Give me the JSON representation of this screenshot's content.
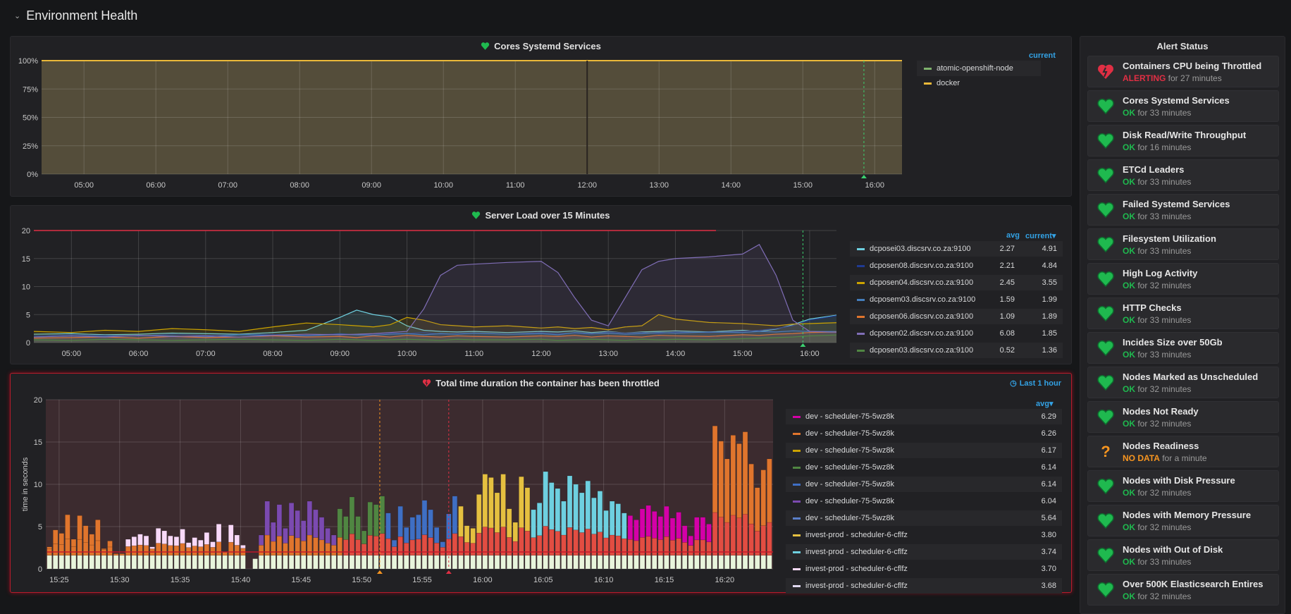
{
  "row": {
    "title": "Environment Health"
  },
  "panels": {
    "cores": {
      "title": "Cores Systemd Services",
      "legend_header": "current",
      "legend": [
        {
          "name": "atomic-openshift-node",
          "color": "#7eb26d"
        },
        {
          "name": "docker",
          "color": "#eab839"
        }
      ]
    },
    "load": {
      "title": "Server Load over 15 Minutes",
      "col_avg": "avg",
      "col_current": "current▾",
      "legend": [
        {
          "name": "dcposei03.discsrv.co.za:9100",
          "color": "#6ed0e0",
          "avg": "2.27",
          "current": "4.91"
        },
        {
          "name": "dcposen08.discsrv.co.za:9100",
          "color": "#1f3a93",
          "avg": "2.21",
          "current": "4.84"
        },
        {
          "name": "dcposen04.discsrv.co.za:9100",
          "color": "#cca300",
          "avg": "2.45",
          "current": "3.55"
        },
        {
          "name": "dcposem03.discsrv.co.za:9100",
          "color": "#447ebc",
          "avg": "1.59",
          "current": "1.99"
        },
        {
          "name": "dcposen06.discsrv.co.za:9100",
          "color": "#e0752d",
          "avg": "1.09",
          "current": "1.89"
        },
        {
          "name": "dcposen02.discsrv.co.za:9100",
          "color": "#806eb7",
          "avg": "6.08",
          "current": "1.85"
        },
        {
          "name": "dcposen03.discsrv.co.za:9100",
          "color": "#508642",
          "avg": "0.52",
          "current": "1.36"
        }
      ]
    },
    "throttle": {
      "title": "Total time duration the container has been throttled",
      "time_range": "Last 1 hour",
      "col_avg": "avg▾",
      "legend": [
        {
          "name": "dev - scheduler-75-5wz8k",
          "color": "#d400a8",
          "avg": "6.29"
        },
        {
          "name": "dev - scheduler-75-5wz8k",
          "color": "#e0752d",
          "avg": "6.26"
        },
        {
          "name": "dev - scheduler-75-5wz8k",
          "color": "#cca300",
          "avg": "6.17"
        },
        {
          "name": "dev - scheduler-75-5wz8k",
          "color": "#508642",
          "avg": "6.14"
        },
        {
          "name": "dev - scheduler-75-5wz8k",
          "color": "#3f6fc4",
          "avg": "6.14"
        },
        {
          "name": "dev - scheduler-75-5wz8k",
          "color": "#7b4ab0",
          "avg": "6.04"
        },
        {
          "name": "dev - scheduler-75-5wz8k",
          "color": "#5b7fc9",
          "avg": "5.64"
        },
        {
          "name": "invest-prod - scheduler-6-cflfz",
          "color": "#e5c040",
          "avg": "3.80"
        },
        {
          "name": "invest-prod - scheduler-6-cflfz",
          "color": "#6ed0e0",
          "avg": "3.74"
        },
        {
          "name": "invest-prod - scheduler-6-cflfz",
          "color": "#f9d9f9",
          "avg": "3.70"
        },
        {
          "name": "invest-prod - scheduler-6-cflfz",
          "color": "#e0d8f0",
          "avg": "3.68"
        }
      ]
    }
  },
  "alerts": {
    "title": "Alert Status",
    "items": [
      {
        "name": "Containers CPU being Throttled",
        "state": "ALERTING",
        "duration": "for 27 minutes"
      },
      {
        "name": "Cores Systemd Services",
        "state": "OK",
        "duration": "for 33 minutes"
      },
      {
        "name": "Disk Read/Write Throughput",
        "state": "OK",
        "duration": "for 16 minutes"
      },
      {
        "name": "ETCd Leaders",
        "state": "OK",
        "duration": "for 33 minutes"
      },
      {
        "name": "Failed Systemd Services",
        "state": "OK",
        "duration": "for 33 minutes"
      },
      {
        "name": "Filesystem Utilization",
        "state": "OK",
        "duration": "for 33 minutes"
      },
      {
        "name": "High Log Activity",
        "state": "OK",
        "duration": "for 32 minutes"
      },
      {
        "name": "HTTP Checks",
        "state": "OK",
        "duration": "for 33 minutes"
      },
      {
        "name": "Incides Size over 50Gb",
        "state": "OK",
        "duration": "for 33 minutes"
      },
      {
        "name": "Nodes Marked as Unscheduled",
        "state": "OK",
        "duration": "for 32 minutes"
      },
      {
        "name": "Nodes Not Ready",
        "state": "OK",
        "duration": "for 32 minutes"
      },
      {
        "name": "Nodes Readiness",
        "state": "NO DATA",
        "duration": "for a minute"
      },
      {
        "name": "Nodes with Disk Pressure",
        "state": "OK",
        "duration": "for 32 minutes"
      },
      {
        "name": "Nodes with Memory Pressure",
        "state": "OK",
        "duration": "for 32 minutes"
      },
      {
        "name": "Nodes with Out of Disk",
        "state": "OK",
        "duration": "for 33 minutes"
      },
      {
        "name": "Over 500K Elasticsearch Entires",
        "state": "OK",
        "duration": "for 32 minutes"
      }
    ]
  },
  "colors": {
    "ok": "#1fb94f",
    "alerting": "#e02f44",
    "nodata": "#f79520",
    "accent": "#33a2e5"
  },
  "chart_data": [
    {
      "type": "area",
      "title": "Cores Systemd Services",
      "x_unit": "hours",
      "xlim": [
        4.41,
        16.38
      ],
      "ylim": [
        0,
        100
      ],
      "y_ticks": [
        "0%",
        "25%",
        "50%",
        "75%",
        "100%"
      ],
      "x_ticks": [
        "05:00",
        "06:00",
        "07:00",
        "08:00",
        "09:00",
        "10:00",
        "11:00",
        "12:00",
        "13:00",
        "14:00",
        "15:00",
        "16:00"
      ],
      "series": [
        {
          "name": "atomic-openshift-node",
          "x": [
            4.41,
            16.38
          ],
          "y": [
            100,
            100
          ]
        },
        {
          "name": "docker",
          "x": [
            4.41,
            16.38
          ],
          "y": [
            100,
            100
          ]
        }
      ],
      "annotation_x": 15.85
    },
    {
      "type": "line",
      "title": "Server Load over 15 Minutes",
      "x_unit": "hours",
      "xlim": [
        4.44,
        16.4
      ],
      "ylim": [
        0,
        20
      ],
      "threshold": 20,
      "y_ticks": [
        "0",
        "5",
        "10",
        "15",
        "20"
      ],
      "x_ticks": [
        "05:00",
        "06:00",
        "07:00",
        "08:00",
        "09:00",
        "10:00",
        "11:00",
        "12:00",
        "13:00",
        "14:00",
        "15:00",
        "16:00"
      ],
      "x": [
        4.44,
        5,
        5.5,
        6,
        6.5,
        7,
        7.5,
        8,
        8.5,
        9,
        9.25,
        9.5,
        9.75,
        10,
        10.25,
        10.5,
        10.75,
        11,
        11.5,
        12,
        12.25,
        12.5,
        12.75,
        13,
        13.25,
        13.5,
        13.75,
        14,
        14.5,
        15,
        15.25,
        15.5,
        15.75,
        16,
        16.4
      ],
      "series": [
        {
          "name": "dcposei03.discsrv.co.za:9100",
          "y": [
            1.5,
            1.6,
            1.4,
            1.5,
            1.7,
            1.6,
            1.5,
            1.8,
            2.2,
            4.5,
            5.8,
            5.0,
            4.6,
            3.0,
            2.2,
            2.0,
            1.9,
            2.0,
            1.8,
            2.0,
            1.9,
            2.1,
            1.8,
            2.0,
            1.7,
            1.9,
            2.0,
            2.1,
            1.9,
            2.2,
            2.0,
            2.4,
            3.2,
            4.2,
            4.9
          ]
        },
        {
          "name": "dcposen08.discsrv.co.za:9100",
          "y": [
            1.2,
            1.4,
            1.3,
            1.2,
            1.5,
            1.3,
            1.4,
            1.5,
            1.3,
            1.6,
            1.4,
            1.5,
            1.7,
            1.6,
            1.8,
            1.5,
            1.6,
            1.7,
            1.5,
            1.8,
            1.6,
            1.7,
            1.5,
            1.9,
            1.7,
            1.8,
            1.6,
            1.9,
            1.8,
            2.0,
            2.2,
            2.5,
            3.0,
            4.0,
            4.8
          ]
        },
        {
          "name": "dcposen04.discsrv.co.za:9100",
          "y": [
            2.0,
            1.8,
            2.2,
            2.0,
            2.5,
            2.3,
            2.0,
            2.8,
            3.5,
            3.2,
            3.0,
            2.8,
            3.2,
            4.5,
            4.0,
            3.2,
            3.0,
            2.8,
            3.0,
            2.6,
            2.8,
            2.5,
            2.7,
            2.3,
            2.8,
            3.0,
            5.0,
            4.2,
            3.6,
            3.4,
            3.2,
            3.0,
            3.3,
            3.4,
            3.55
          ]
        },
        {
          "name": "dcposem03.discsrv.co.za:9100",
          "y": [
            1.0,
            1.2,
            1.1,
            1.3,
            1.2,
            1.0,
            1.4,
            1.3,
            1.2,
            1.5,
            1.4,
            1.3,
            1.5,
            1.6,
            1.4,
            1.6,
            1.5,
            1.7,
            1.5,
            1.6,
            1.4,
            1.8,
            1.6,
            1.7,
            1.5,
            1.6,
            1.8,
            1.7,
            1.9,
            1.8,
            2.0,
            1.9,
            2.1,
            2.0,
            1.99
          ]
        },
        {
          "name": "dcposen06.discsrv.co.za:9100",
          "y": [
            0.8,
            0.9,
            1.0,
            0.8,
            1.1,
            0.9,
            1.0,
            1.2,
            1.0,
            1.1,
            0.9,
            1.2,
            1.0,
            1.3,
            1.1,
            1.0,
            1.2,
            1.1,
            1.0,
            1.2,
            1.1,
            1.3,
            1.0,
            1.2,
            1.1,
            1.0,
            1.3,
            1.2,
            1.1,
            1.4,
            1.3,
            1.5,
            1.6,
            1.8,
            1.89
          ]
        },
        {
          "name": "dcposen02.discsrv.co.za:9100",
          "y": [
            1.0,
            1.2,
            1.0,
            1.3,
            1.1,
            1.2,
            1.0,
            1.3,
            1.5,
            1.4,
            1.5,
            1.6,
            1.8,
            2.0,
            6.0,
            12.0,
            13.8,
            14.0,
            14.3,
            14.5,
            12.5,
            8.0,
            4.0,
            3.0,
            8.0,
            13.0,
            14.5,
            15.0,
            15.3,
            15.8,
            17.5,
            12.0,
            4.0,
            2.0,
            1.85
          ]
        },
        {
          "name": "dcposen03.discsrv.co.za:9100",
          "y": [
            0.5,
            0.4,
            0.6,
            0.5,
            0.4,
            0.5,
            0.6,
            0.5,
            0.4,
            0.6,
            0.5,
            0.4,
            0.5,
            0.6,
            0.5,
            0.4,
            0.6,
            0.5,
            0.5,
            0.6,
            0.4,
            0.5,
            0.6,
            0.5,
            0.4,
            0.6,
            0.5,
            0.6,
            0.5,
            0.7,
            0.8,
            0.9,
            1.0,
            1.2,
            1.36
          ]
        }
      ],
      "annotation_x": 15.9
    },
    {
      "type": "bar",
      "stacked": true,
      "title": "Total time duration the container has been throttled",
      "ylabel": "time in seconds",
      "x_unit": "minutes after 15:00",
      "xlim": [
        23.9,
        84
      ],
      "ylim": [
        0,
        20
      ],
      "threshold": 2,
      "y_ticks": [
        "0",
        "5",
        "10",
        "15",
        "20"
      ],
      "x_ticks": [
        "15:25",
        "15:30",
        "15:35",
        "15:40",
        "15:45",
        "15:50",
        "15:55",
        "16:00",
        "16:05",
        "16:10",
        "16:15",
        "16:20"
      ],
      "bar_start": 24,
      "bar_step": 0.5,
      "totals": [
        2.6,
        4.6,
        4.2,
        6.4,
        3.5,
        6.3,
        5.1,
        4.1,
        5.8,
        2.4,
        3.3,
        1.8,
        1.8,
        3.5,
        3.8,
        4.1,
        3.9,
        2.6,
        4.8,
        4.5,
        3.9,
        3.8,
        4.7,
        3.1,
        3.7,
        3.4,
        4.3,
        3.2,
        5.3,
        2.0,
        5.2,
        4.0,
        2.8,
        0,
        1.2,
        4.0,
        8.0,
        5.5,
        7.6,
        4.8,
        7.8,
        6.9,
        5.7,
        8.0,
        7.0,
        6.1,
        4.8,
        4.0,
        7.1,
        6.2,
        8.5,
        6.2,
        4.5,
        7.9,
        7.6,
        8.6,
        6.6,
        3.4,
        7.4,
        4.9,
        6.1,
        6.4,
        8.1,
        7.0,
        4.9,
        3.2,
        6.5,
        8.6,
        7.4,
        5.1,
        4.8,
        8.8,
        11.2,
        10.8,
        9.0,
        11.2,
        7.1,
        5.5,
        10.9,
        9.6,
        7.0,
        7.8,
        11.5,
        10.2,
        9.5,
        8.0,
        11.0,
        10.0,
        9.0,
        10.4,
        8.4,
        9.2,
        6.9,
        8.0,
        7.7,
        6.6,
        6.3,
        5.8,
        7.1,
        7.5,
        6.8,
        6.2,
        7.4,
        6.0,
        6.7,
        5.1,
        3.9,
        6.1,
        6.1,
        5.3,
        16.9,
        15.1,
        13.0,
        15.8,
        14.8,
        16.2,
        12.4,
        9.6,
        11.7,
        13.0
      ],
      "top_series_ranges": [
        {
          "from": 24,
          "to": 30,
          "series": 1
        },
        {
          "from": 30,
          "to": 41,
          "series": 9
        },
        {
          "from": 41,
          "to": 48,
          "series": 5
        },
        {
          "from": 48,
          "to": 52,
          "series": 3
        },
        {
          "from": 52,
          "to": 58,
          "series": 4
        },
        {
          "from": 58,
          "to": 64,
          "series": 7
        },
        {
          "from": 64,
          "to": 72,
          "series": 8
        },
        {
          "from": 72,
          "to": 79,
          "series": 0
        },
        {
          "from": 79,
          "to": 84,
          "series": 1
        }
      ],
      "annotations": [
        {
          "x": 51.5,
          "color": "#f79520"
        },
        {
          "x": 57.2,
          "color": "#e02f44"
        }
      ]
    }
  ]
}
